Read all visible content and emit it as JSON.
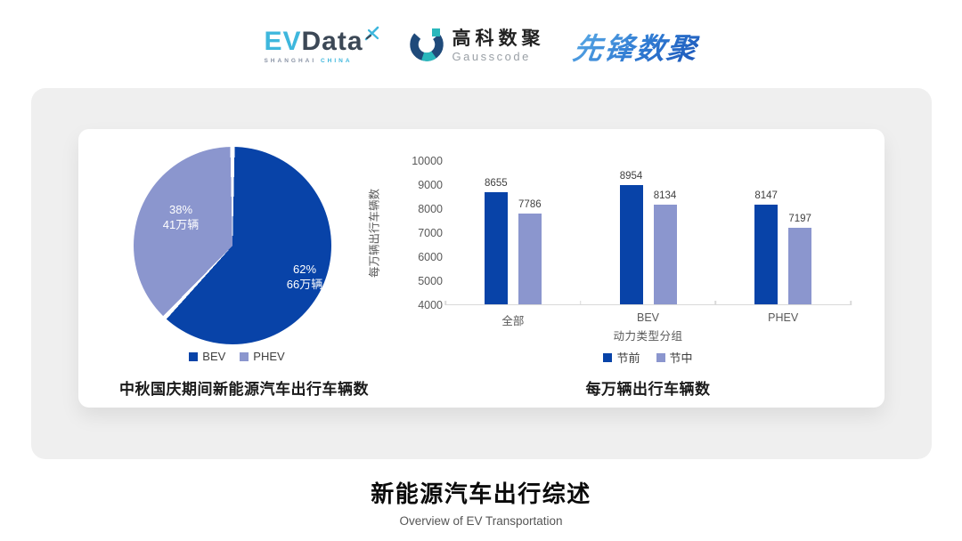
{
  "header": {
    "evdata": {
      "part_cyan": "EV",
      "part_dark": "Data",
      "sub_left": "SHANGHAI",
      "sub_right": "CHINA"
    },
    "gausscode": {
      "cn": "高科数聚",
      "en": "Gausscode"
    },
    "xianfeng": {
      "text": "先锋数聚"
    }
  },
  "colors": {
    "primary_dark_blue": "#0843a8",
    "primary_light_blue": "#8b96ce",
    "panel_gray": "#efefef",
    "axis_gray": "#d9d9d9",
    "cyan_accent": "#3eb7dd"
  },
  "chart_data": [
    {
      "type": "pie",
      "title": "中秋国庆期间新能源汽车出行车辆数",
      "labels": [
        "BEV",
        "PHEV"
      ],
      "values": [
        62,
        38
      ],
      "colors": [
        "#0843a8",
        "#8b96ce"
      ],
      "slice_texts": [
        [
          "62%",
          "66万辆"
        ],
        [
          "38%",
          "41万辆"
        ]
      ],
      "start_angle": "top",
      "direction": "clockwise",
      "legend_position": "bottom"
    },
    {
      "type": "bar",
      "title": "每万辆出行车辆数",
      "categories": [
        "全部",
        "BEV",
        "PHEV"
      ],
      "series": [
        {
          "name": "节前",
          "color": "#0843a8",
          "values": [
            8655,
            8954,
            8147
          ]
        },
        {
          "name": "节中",
          "color": "#8b96ce",
          "values": [
            7786,
            8134,
            7197
          ]
        }
      ],
      "xlabel": "动力类型分组",
      "ylabel": "每万辆出行车辆数",
      "ylim": [
        4000,
        10000
      ],
      "ytick_step": 1000,
      "grid": false,
      "value_labels": true,
      "legend_position": "bottom"
    }
  ],
  "footer": {
    "title": "新能源汽车出行综述",
    "subtitle": "Overview of EV Transportation"
  }
}
